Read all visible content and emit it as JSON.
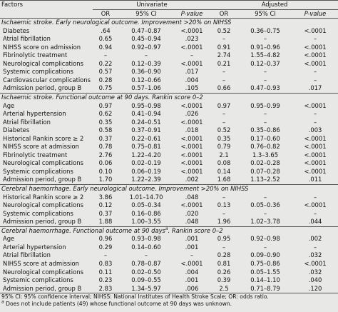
{
  "table": {
    "header": {
      "factors": "Factors",
      "groups": [
        "Univariate",
        "Adjusted"
      ],
      "columns": [
        "OR",
        "95% CI",
        "P-value",
        "OR",
        "95% CI",
        "P-value"
      ]
    },
    "sections": [
      {
        "title": "Ischaemic stroke. Early neurological outcome. Improvement >20% on NIHSS",
        "rows": [
          {
            "factor": "Diabetes",
            "values": [
              ".64",
              "0.47–0.87",
              "<.0001",
              "0.52",
              "0.36–0.75",
              "<.0001"
            ]
          },
          {
            "factor": "Atrial fibrillation",
            "values": [
              "0.65",
              "0.45–0.94",
              ".023",
              "–",
              "–",
              "–"
            ]
          },
          {
            "factor": "NIHSS score on admission",
            "values": [
              "0.94",
              "0.92–0.97",
              "<.0001",
              "0.91",
              "0.91–0.96",
              "<.0001"
            ]
          },
          {
            "factor": "Fibrinolytic treatment",
            "values": [
              "–",
              "–",
              "–",
              "2.74",
              "1.55–4.82",
              "<.0001"
            ]
          },
          {
            "factor": "Neurological complications",
            "values": [
              "0.22",
              "0.12–0.39",
              "<.0001",
              "0.21",
              "0.12–0.37",
              "<.0001"
            ]
          },
          {
            "factor": "Systemic complications",
            "values": [
              "0.57",
              "0.36–0.90",
              ".017",
              "–",
              "–",
              "–"
            ]
          },
          {
            "factor": "Cardiovascular complications",
            "values": [
              "0.28",
              "0.12–0.66",
              ".004",
              "–",
              "–",
              "–"
            ]
          },
          {
            "factor": "Admission period, group B",
            "values": [
              "0.75",
              "0.57–1.06",
              ".105",
              "0.66",
              "0.47–0.93",
              ".017"
            ]
          }
        ]
      },
      {
        "title": "Ischaemic stroke. Functional outcome at 90 days. Rankin score 0–2",
        "rows": [
          {
            "factor": "Age",
            "values": [
              "0.97",
              "0.95–0.98",
              "<.0001",
              "0.97",
              "0.95–0.99",
              "<.0001"
            ]
          },
          {
            "factor": "Arterial hypertension",
            "values": [
              "0.62",
              "0.41–0.94",
              ".026",
              "–",
              "–",
              "–"
            ]
          },
          {
            "factor": "Atrial fibrillation",
            "values": [
              "0.35",
              "0.24–0.51",
              "<.0001",
              "–",
              "–",
              "–"
            ]
          },
          {
            "factor": "Diabetes",
            "values": [
              "0.58",
              "0.37–0.91",
              ".018",
              "0.52",
              "0.35–0.86",
              ".003"
            ]
          },
          {
            "factor": "Historical Rankin score ≥ 2",
            "values": [
              "0.37",
              "0.22–0.61",
              "<.0001",
              "0.35",
              "0.17–0.60",
              "<.0001"
            ]
          },
          {
            "factor": "NIHSS score at admission",
            "values": [
              "0.78",
              "0.75–0.81",
              "<.0001",
              "0.79",
              "0.76–0.82",
              "<.0001"
            ]
          },
          {
            "factor": "Fibrinolytic treatment",
            "values": [
              "2.76",
              "1.22–4.20",
              "<.0001",
              "2.1",
              "1.3–3.65",
              "<.0001"
            ]
          },
          {
            "factor": "Neurological complications",
            "values": [
              "0.06",
              "0.02–0.19",
              "<.0001",
              "0.08",
              "0.02–0.28",
              "<.0001"
            ]
          },
          {
            "factor": "Systemic complications",
            "values": [
              "0.10",
              "0.06–0.19",
              "<.0001",
              "0.14",
              "0.07–0.28",
              "<.0001"
            ]
          },
          {
            "factor": "Admission period, group B",
            "values": [
              "1.70",
              "1.22–2.39",
              ".002",
              "1.68",
              "1.13–2.52",
              ".011"
            ]
          }
        ]
      },
      {
        "title": "Cerebral haemorrhage. Early neurological outcome. Improvement >20% on NIHSS",
        "rows": [
          {
            "factor": "Historical Rankin score ≥ 2",
            "values": [
              "3.86",
              "1.01–14.70",
              ".048",
              "–",
              "–",
              "–"
            ]
          },
          {
            "factor": "Neurological complications",
            "values": [
              "0.12",
              "0.05–0.34",
              "<.0001",
              "0.13",
              "0.05–0.36",
              "<.0001"
            ]
          },
          {
            "factor": "Systemic complications",
            "values": [
              "0.37",
              "0.16–0.86",
              ".020",
              "–",
              "–",
              "–"
            ]
          },
          {
            "factor": "Admission period, group B",
            "values": [
              "1.88",
              "1.00–3.55",
              ".048",
              "1.96",
              "1.02–3.78",
              ".044"
            ]
          }
        ]
      },
      {
        "title": "Cerebral haemorrhage. Functional outcome at 90 days",
        "note_mark": "a",
        "title_end": ". Rankin score 0–2",
        "rows": [
          {
            "factor": "Age",
            "values": [
              "0.96",
              "0.93–0.98",
              ".001",
              "0.95",
              "0.92–0.98",
              ".002"
            ]
          },
          {
            "factor": "Arterial hypertension",
            "values": [
              "0.29",
              "0.14–0.60",
              ".001",
              "–",
              "–",
              "–"
            ]
          },
          {
            "factor": "Atrial fibrillation",
            "values": [
              "–",
              "–",
              "–",
              "0.28",
              "0.09–0.90",
              ".032"
            ]
          },
          {
            "factor": "NIHSS score at admission",
            "values": [
              "0.83",
              "0.78–0.87",
              "<.0001",
              "0.81",
              "0.75–0.86",
              "<.0001"
            ]
          },
          {
            "factor": "Neurological complications",
            "values": [
              "0.11",
              "0.02–0.50",
              ".004",
              "0.26",
              "0.05–1.55",
              ".032"
            ]
          },
          {
            "factor": "Systemic complications",
            "values": [
              "0.23",
              "0.09–0.55",
              ".001",
              "0.39",
              "0.14–1.10",
              ".040"
            ]
          },
          {
            "factor": "Admission period, group B",
            "values": [
              "2.83",
              "1.34–5.97",
              ".006",
              "2.5",
              "0.71–8.79",
              ".120"
            ]
          }
        ]
      }
    ],
    "footnotes": [
      {
        "text": "95% CI: 95% confidence interval; NIHSS: National Institutes of Health Stroke Scale; OR: odds ratio."
      },
      {
        "mark": "a",
        "text": "Does not include patients (49) whose functional outcome at 90 days was unknown."
      }
    ]
  }
}
